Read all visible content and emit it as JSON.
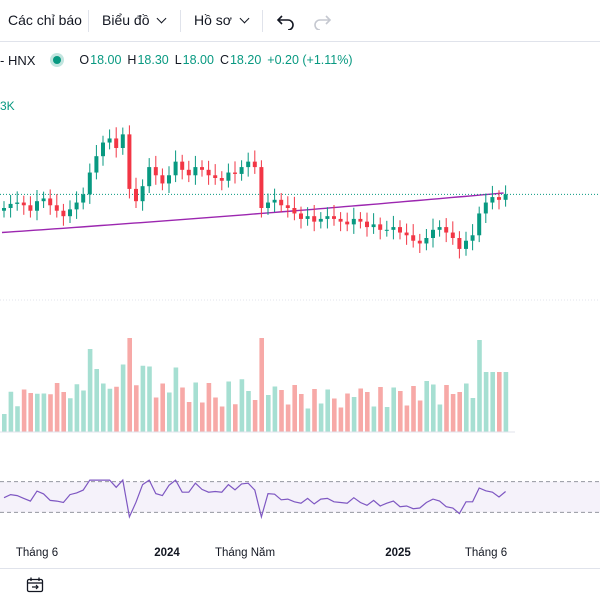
{
  "toolbar": {
    "indicators_label": "Các chỉ báo",
    "chart_label": "Biểu đồ",
    "profile_label": "Hồ sơ",
    "undo_icon": "undo-icon",
    "redo_icon": "redo-icon"
  },
  "legend": {
    "symbol_suffix": "- HNX",
    "open_label": "O",
    "open_value": "18.00",
    "high_label": "H",
    "high_value": "18.30",
    "low_label": "L",
    "low_value": "18.00",
    "close_label": "C",
    "close_value": "18.20",
    "change": "+0.20 (+1.11%)",
    "up_color": "#089981",
    "down_color": "#f23645"
  },
  "chart_data": [
    {
      "type": "candlestick",
      "cut_label": "3K",
      "x_ticks": [
        "Tháng 6",
        "2024",
        "Tháng Năm",
        "2025",
        "Tháng 6"
      ],
      "bold_ticks": [
        "2024",
        "2025"
      ],
      "ma_color": "#9c27b0",
      "last_price": 18.2,
      "ohlc_close": [
        17.7,
        17.85,
        17.9,
        17.8,
        17.6,
        17.95,
        18.05,
        17.8,
        17.6,
        17.4,
        17.65,
        17.9,
        18.2,
        19.0,
        19.6,
        20.1,
        20.25,
        19.9,
        20.4,
        18.4,
        17.95,
        18.5,
        19.2,
        18.9,
        18.6,
        18.9,
        19.4,
        19.1,
        18.9,
        19.2,
        19.1,
        18.9,
        18.8,
        18.7,
        19.0,
        18.95,
        19.2,
        19.4,
        19.2,
        17.7,
        17.9,
        18.0,
        17.8,
        17.7,
        17.5,
        17.3,
        17.4,
        17.2,
        17.3,
        17.4,
        17.3,
        17.2,
        17.1,
        17.3,
        17.2,
        17.0,
        17.1,
        16.9,
        16.9,
        17.0,
        16.8,
        16.7,
        16.5,
        16.4,
        16.6,
        16.9,
        17.0,
        16.8,
        16.6,
        16.2,
        16.5,
        16.7,
        17.5,
        17.9,
        18.1,
        18.0,
        18.2
      ],
      "rsi_levels": [
        70,
        30
      ]
    }
  ],
  "footer": {
    "icon": "date-range-icon"
  }
}
